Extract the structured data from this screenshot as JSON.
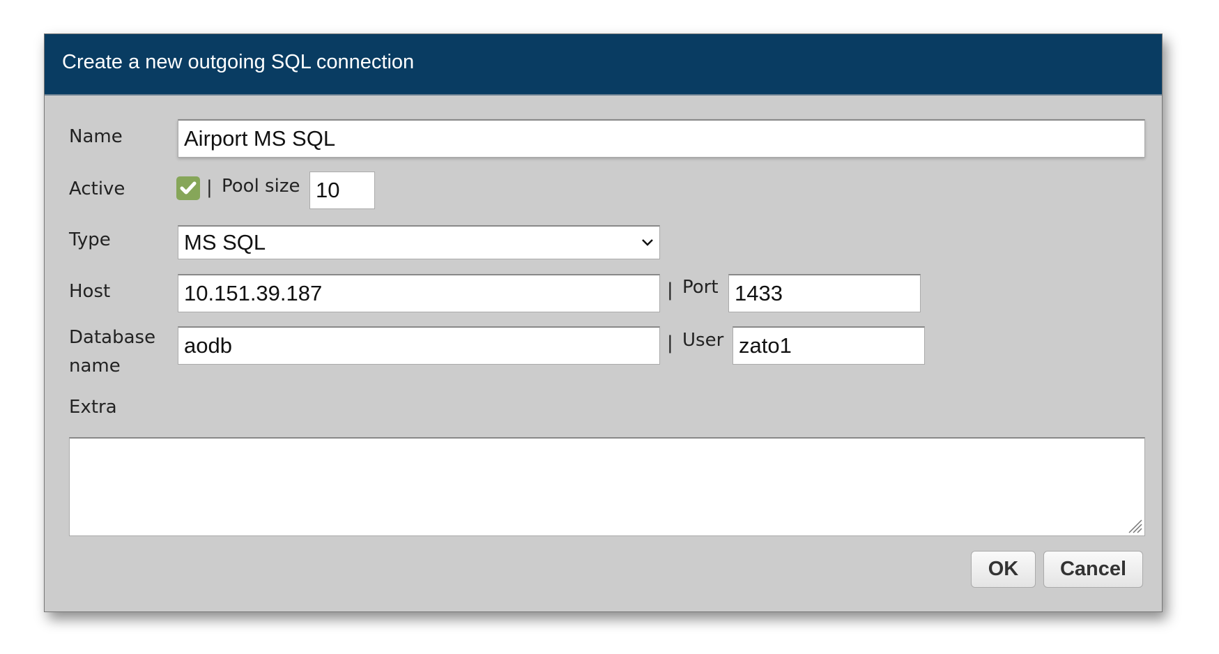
{
  "dialog": {
    "title": "Create a new outgoing SQL connection",
    "fields": {
      "name": {
        "label": "Name",
        "value": "Airport MS SQL"
      },
      "active": {
        "label": "Active",
        "checked": true,
        "check_color": "#86a659"
      },
      "pool_size": {
        "label": "Pool size",
        "value": "10"
      },
      "type": {
        "label": "Type",
        "value": "MS SQL"
      },
      "host": {
        "label": "Host",
        "value": "10.151.39.187"
      },
      "port": {
        "label": "Port",
        "value": "1433"
      },
      "database": {
        "label_line1": "Database",
        "label_line2": "name",
        "value": "aodb"
      },
      "user": {
        "label": "User",
        "value": "zato1"
      },
      "extra": {
        "label": "Extra",
        "value": ""
      }
    },
    "separator": "|",
    "buttons": {
      "ok": "OK",
      "cancel": "Cancel"
    },
    "colors": {
      "header": "#093c62",
      "body": "#cccccc"
    }
  }
}
